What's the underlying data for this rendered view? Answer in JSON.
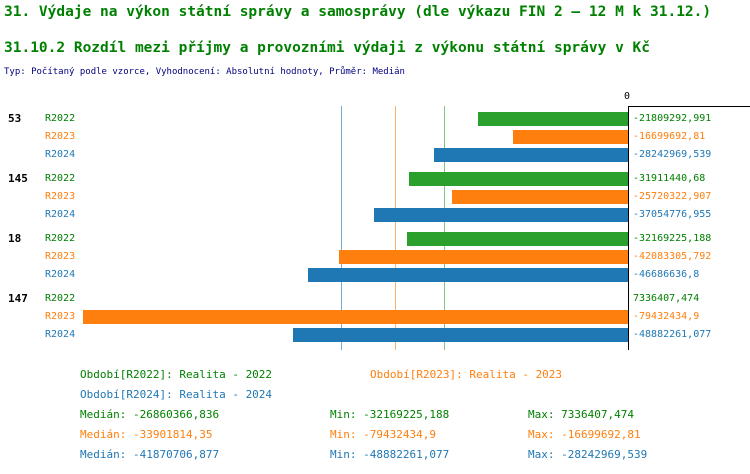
{
  "colors": {
    "green": "#2ca02c",
    "orange": "#ff7f0e",
    "blue": "#1f77b4",
    "text_green": "#008000",
    "navy": "#000080",
    "axis": "#000000"
  },
  "header": {
    "title": "31. Výdaje na výkon státní správy a samosprávy (dle výkazu FIN 2 – 12 M k 31.12.)",
    "subtitle": "31.10.2 Rozdíl mezi příjmy a provozními výdaji z výkonu státní správy v Kč",
    "meta": "Typ: Počítaný podle vzorce, Vyhodnocení: Absolutní hodnoty, Průměr: Medián"
  },
  "chart_data": {
    "type": "bar",
    "orientation": "horizontal",
    "grid": "median-lines-only",
    "legend_position": "bottom",
    "zero_label": "0",
    "value_axis": {
      "min": -80000000,
      "max": 8000000,
      "zero": 0
    },
    "categories": [
      "53",
      "145",
      "18",
      "147"
    ],
    "series": [
      {
        "name": "R2022",
        "color_key": "green",
        "text_color_key": "text_green",
        "legend": "Období[R2022]: Realita - 2022",
        "median": -26860366.836,
        "stats": {
          "median_label": "Medián: -26860366,836",
          "min_label": "Min: -32169225,188",
          "max_label": "Max: 7336407,474"
        },
        "values": [
          -21809292.991,
          -31911440.68,
          -32169225.188,
          7336407.474
        ],
        "value_labels": [
          "-21809292,991",
          "-31911440,68",
          "-32169225,188",
          "7336407,474"
        ]
      },
      {
        "name": "R2023",
        "color_key": "orange",
        "text_color_key": "orange",
        "legend": "Období[R2023]: Realita - 2023",
        "median": -33901814.35,
        "stats": {
          "median_label": "Medián: -33901814,35",
          "min_label": "Min: -79432434,9",
          "max_label": "Max: -16699692,81"
        },
        "values": [
          -16699692.81,
          -25720322.907,
          -42083305.792,
          -79432434.9
        ],
        "value_labels": [
          "-16699692,81",
          "-25720322,907",
          "-42083305,792",
          "-79432434,9"
        ]
      },
      {
        "name": "R2024",
        "color_key": "blue",
        "text_color_key": "blue",
        "legend": "Období[R2024]: Realita - 2024",
        "median": -41870706.877,
        "stats": {
          "median_label": "Medián: -41870706,877",
          "min_label": "Min: -48882261,077",
          "max_label": "Max: -28242969,539"
        },
        "values": [
          -28242969.539,
          -37054776.955,
          -46686636.8,
          -48882261.077
        ],
        "value_labels": [
          "-28242969,539",
          "-37054776,955",
          "-46686636,8",
          "-48882261,077"
        ]
      }
    ]
  }
}
